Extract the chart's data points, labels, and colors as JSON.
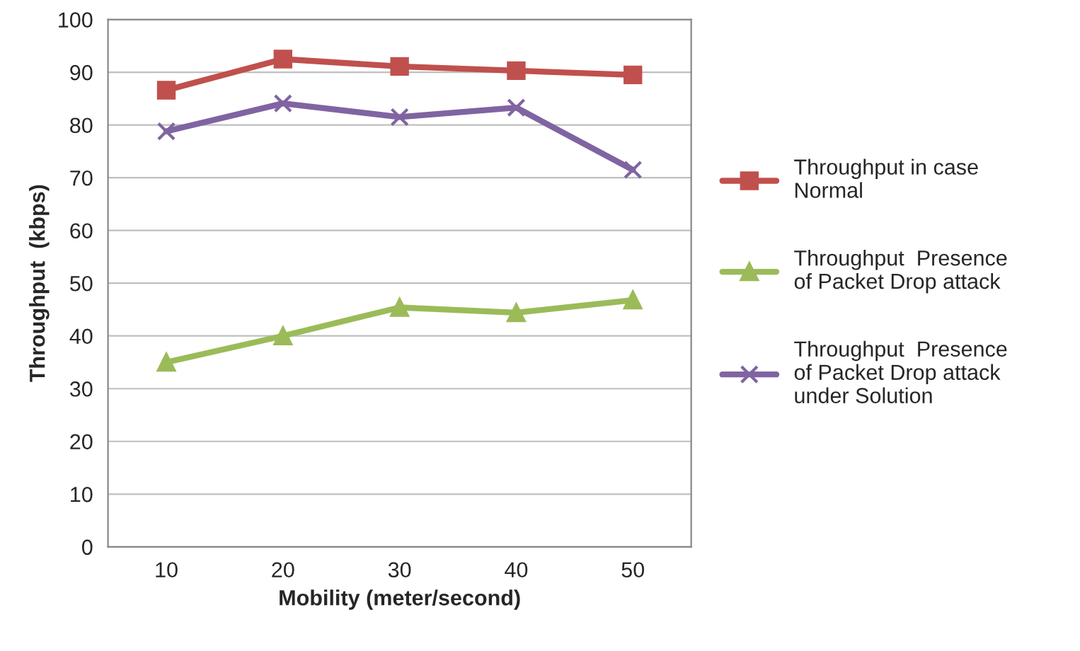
{
  "chart_data": {
    "type": "line",
    "xlabel": "Mobility (meter/second)",
    "ylabel": "Throughput  (kbps)",
    "categories": [
      "10",
      "20",
      "30",
      "40",
      "50"
    ],
    "series": [
      {
        "name": "Throughput in case\nNormal",
        "color": "#c0504d",
        "marker": "square",
        "values": [
          86.6,
          92.5,
          91.1,
          90.3,
          89.5
        ]
      },
      {
        "name": "Throughput  Presence\nof Packet Drop attack",
        "color": "#9bbb59",
        "marker": "triangle",
        "values": [
          35.0,
          40.0,
          45.4,
          44.4,
          46.8
        ]
      },
      {
        "name": "Throughput  Presence\nof Packet Drop attack\nunder Solution",
        "color": "#8064a2",
        "marker": "cross",
        "values": [
          78.8,
          84.1,
          81.5,
          83.3,
          71.5
        ]
      }
    ],
    "ylim": [
      0,
      100
    ],
    "yticks": [
      0,
      10,
      20,
      30,
      40,
      50,
      60,
      70,
      80,
      90,
      100
    ],
    "grid": "y",
    "legend": "right",
    "line_style": "solid"
  }
}
